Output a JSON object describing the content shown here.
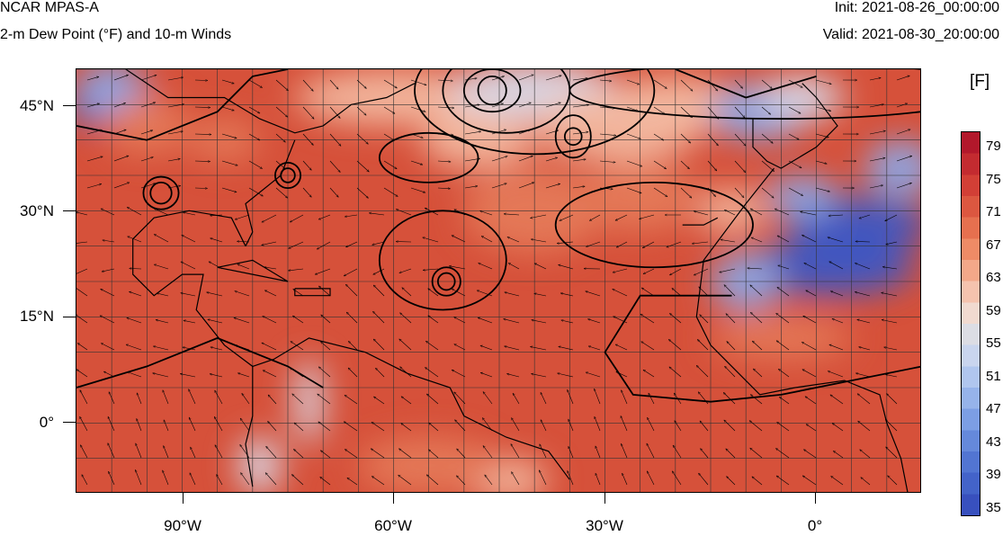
{
  "header": {
    "model": "NCAR MPAS-A",
    "field": "2-m Dew Point (°F) and 10-m Winds",
    "init": "Init: 2021-08-26_00:00:00",
    "valid": "Valid: 2021-08-30_20:00:00"
  },
  "map": {
    "lat_labels": [
      "45°N",
      "30°N",
      "15°N",
      "0°"
    ],
    "lon_labels": [
      "90°W",
      "60°W",
      "30°W",
      "0°"
    ],
    "lat_range": [
      -10,
      50
    ],
    "lon_range": [
      -105,
      15
    ],
    "colors": {
      "humid": "#d6513a",
      "moist": "#e57a5a",
      "mild": "#f2b8a0",
      "neutral": "#d8dcec",
      "dry": "#8aa8e8",
      "very_dry": "#3d57c4"
    }
  },
  "colorbar": {
    "unit": "[F]",
    "labels": [
      "79",
      "75",
      "71",
      "67",
      "63",
      "59",
      "55",
      "51",
      "47",
      "43",
      "39",
      "35"
    ],
    "colors": [
      "#b2182b",
      "#c32b30",
      "#d23f36",
      "#dc5740",
      "#e6704f",
      "#ee8b66",
      "#f3a889",
      "#f5c3ae",
      "#f1dad0",
      "#dcdde4",
      "#c9d5ee",
      "#b0c6ee",
      "#96b3ea",
      "#7c9ee4",
      "#6589db",
      "#5275d2",
      "#4363c9",
      "#3850be"
    ]
  }
}
